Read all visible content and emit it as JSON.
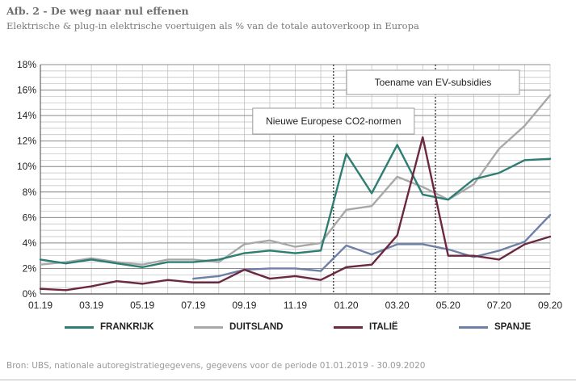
{
  "figure": {
    "title": "Afb. 2 - De weg naar nul effenen",
    "subtitle": "Elektrische & plug-in elektrische voertuigen als % van de totale autoverkoop in Europa",
    "source": "Bron: UBS, nationale autoregistratiegegevens, gegevens voor de periode 01.01.2019 - 30.09.2020"
  },
  "chart_data": {
    "type": "line",
    "x": [
      "01.19",
      "02.19",
      "03.19",
      "04.19",
      "05.19",
      "06.19",
      "07.19",
      "08.19",
      "09.19",
      "10.19",
      "11.19",
      "12.19",
      "01.20",
      "02.20",
      "03.20",
      "04.20",
      "05.20",
      "06.20",
      "07.20",
      "08.20",
      "09.20"
    ],
    "x_tick_labels": [
      "01.19",
      "03.19",
      "05.19",
      "07.19",
      "09.19",
      "11.19",
      "01.20",
      "03.20",
      "05.20",
      "07.20",
      "09.20"
    ],
    "y_tick_labels": [
      "0%",
      "2%",
      "4%",
      "6%",
      "8%",
      "10%",
      "12%",
      "14%",
      "16%",
      "18%"
    ],
    "ylim": [
      0,
      18
    ],
    "y_unit": "%",
    "grid": true,
    "legend_position": "bottom",
    "series": [
      {
        "name": "FRANKRIJK",
        "color": "#2e7d72",
        "values": [
          2.7,
          2.4,
          2.7,
          2.4,
          2.1,
          2.5,
          2.5,
          2.7,
          3.2,
          3.4,
          3.2,
          3.4,
          11.0,
          7.9,
          11.7,
          7.8,
          7.4,
          9.0,
          9.5,
          10.5,
          10.6
        ]
      },
      {
        "name": "DUITSLAND",
        "color": "#a8a8a8",
        "values": [
          2.3,
          2.5,
          2.8,
          2.5,
          2.3,
          2.7,
          2.7,
          2.5,
          3.9,
          4.2,
          3.7,
          4.0,
          6.6,
          6.9,
          9.2,
          8.4,
          7.4,
          8.6,
          11.4,
          13.2,
          15.6
        ]
      },
      {
        "name": "ITALIË",
        "color": "#6b2840",
        "values": [
          0.4,
          0.3,
          0.6,
          1.0,
          0.8,
          1.1,
          0.9,
          0.9,
          1.9,
          1.2,
          1.4,
          1.1,
          2.1,
          2.3,
          4.6,
          12.3,
          3.0,
          3.0,
          2.7,
          3.9,
          4.5
        ]
      },
      {
        "name": "SPANJE",
        "color": "#6e7fa8",
        "values": [
          null,
          null,
          null,
          null,
          null,
          null,
          1.2,
          1.4,
          1.9,
          2.0,
          2.0,
          1.8,
          3.8,
          3.1,
          3.9,
          3.9,
          3.5,
          2.9,
          3.4,
          4.1,
          6.2
        ]
      }
    ],
    "annotations": [
      {
        "text": "Nieuwe Europese CO2-normen",
        "x_after": "12.19"
      },
      {
        "text": "Toename van EV-subsidies",
        "x_after": "04.20"
      }
    ]
  }
}
